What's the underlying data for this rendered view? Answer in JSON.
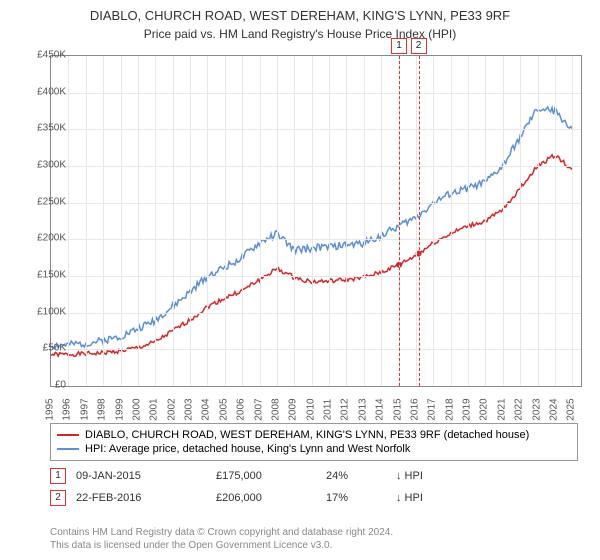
{
  "title_line1": "DIABLO, CHURCH ROAD, WEST DEREHAM, KING'S LYNN, PE33 9RF",
  "title_line2": "Price paid vs. HM Land Registry's House Price Index (HPI)",
  "chart": {
    "type": "line",
    "background_color": "#ffffff",
    "grid_color": "#e8e8e8",
    "border_color": "#888888",
    "x_range": [
      1995,
      2025.5
    ],
    "y_range": [
      0,
      450
    ],
    "y_ticks": [
      0,
      50,
      100,
      150,
      200,
      250,
      300,
      350,
      400,
      450
    ],
    "y_tick_labels": [
      "£0",
      "£50K",
      "£100K",
      "£150K",
      "£200K",
      "£250K",
      "£300K",
      "£350K",
      "£400K",
      "£450K"
    ],
    "x_ticks": [
      1995,
      1996,
      1997,
      1998,
      1999,
      2000,
      2001,
      2002,
      2003,
      2004,
      2005,
      2006,
      2007,
      2008,
      2009,
      2010,
      2011,
      2012,
      2013,
      2014,
      2015,
      2016,
      2017,
      2018,
      2019,
      2020,
      2021,
      2022,
      2023,
      2024,
      2025
    ],
    "series": [
      {
        "name": "property",
        "color": "#d62728",
        "width": 1.5,
        "values": [
          43,
          43,
          44,
          45,
          48,
          52,
          60,
          75,
          90,
          108,
          120,
          130,
          145,
          160,
          148,
          142,
          143,
          145,
          148,
          155,
          165,
          178,
          195,
          208,
          218,
          225,
          240,
          270,
          300,
          315,
          295
        ]
      },
      {
        "name": "hpi",
        "color": "#5b8fd6",
        "width": 1.5,
        "values": [
          55,
          56,
          58,
          62,
          68,
          78,
          90,
          108,
          128,
          150,
          162,
          175,
          195,
          208,
          185,
          188,
          190,
          192,
          195,
          205,
          218,
          230,
          250,
          262,
          270,
          278,
          300,
          340,
          378,
          375,
          350
        ]
      }
    ],
    "markers": [
      {
        "num": "1",
        "year": 2015.03
      },
      {
        "num": "2",
        "year": 2016.15
      }
    ]
  },
  "legend": {
    "items": [
      {
        "color": "#d62728",
        "label": "DIABLO, CHURCH ROAD, WEST DEREHAM, KING'S LYNN, PE33 9RF (detached house)"
      },
      {
        "color": "#5b8fd6",
        "label": "HPI: Average price, detached house, King's Lynn and West Norfolk"
      }
    ]
  },
  "sales": [
    {
      "num": "1",
      "date": "09-JAN-2015",
      "price": "£175,000",
      "pct": "24%",
      "arrow": "↓",
      "vs": "HPI"
    },
    {
      "num": "2",
      "date": "22-FEB-2016",
      "price": "£206,000",
      "pct": "17%",
      "arrow": "↓",
      "vs": "HPI"
    }
  ],
  "footnote_line1": "Contains HM Land Registry data © Crown copyright and database right 2024.",
  "footnote_line2": "This data is licensed under the Open Government Licence v3.0.",
  "label_fontsize": 10,
  "title_fontsize": 13
}
